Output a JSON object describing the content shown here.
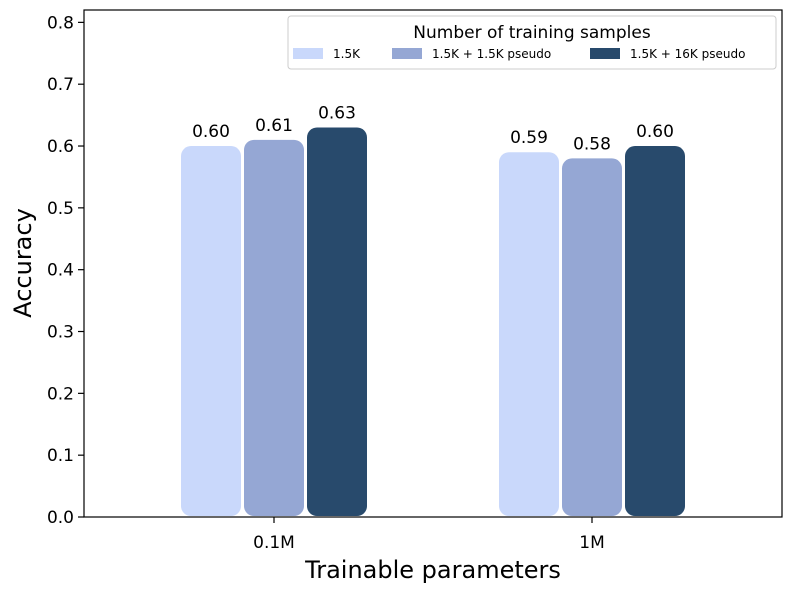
{
  "chart_data": {
    "type": "bar",
    "categories": [
      "0.1M",
      "1M"
    ],
    "series": [
      {
        "name": "1.5K",
        "values": [
          0.6,
          0.59
        ],
        "color": "#c9d8fb"
      },
      {
        "name": "1.5K + 1.5K pseudo",
        "values": [
          0.61,
          0.58
        ],
        "color": "#95a7d4"
      },
      {
        "name": "1.5K + 16K pseudo",
        "values": [
          0.63,
          0.6
        ],
        "color": "#284a6c"
      }
    ],
    "data_labels": [
      [
        "0.60",
        "0.59"
      ],
      [
        "0.61",
        "0.58"
      ],
      [
        "0.63",
        "0.60"
      ]
    ],
    "xlabel": "Trainable parameters",
    "ylabel": "Accuracy",
    "ylim": [
      0,
      0.82
    ],
    "yticks": [
      "0.0",
      "0.1",
      "0.2",
      "0.3",
      "0.4",
      "0.5",
      "0.6",
      "0.7",
      "0.8"
    ],
    "legend": {
      "title": "Number of training samples",
      "placement": "top-right"
    },
    "grid": false
  }
}
